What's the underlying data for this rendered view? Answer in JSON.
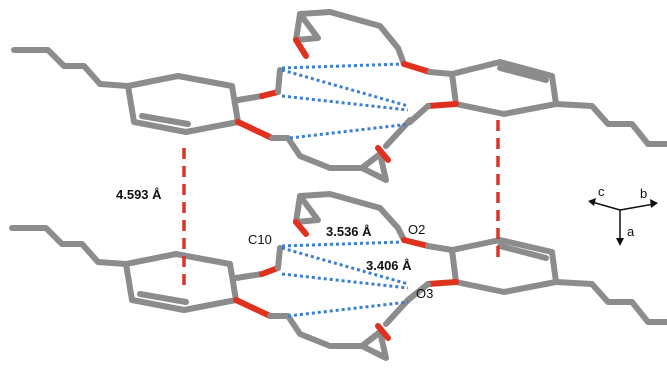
{
  "labels": {
    "pi_distance": "4.593 Å",
    "hbond_1": "3.536 Å",
    "hbond_2": "3.406 Å",
    "atom_c10": "C10",
    "atom_o2": "O2",
    "atom_o3": "O3"
  },
  "axes": {
    "c": "c",
    "b": "b",
    "a": "a"
  },
  "colors": {
    "carbon_bond": "#8c8c8c",
    "oxygen": "#e0301e",
    "hydrogen_bond": "#3b7fd4",
    "pi_stacking": "#d9362a"
  }
}
